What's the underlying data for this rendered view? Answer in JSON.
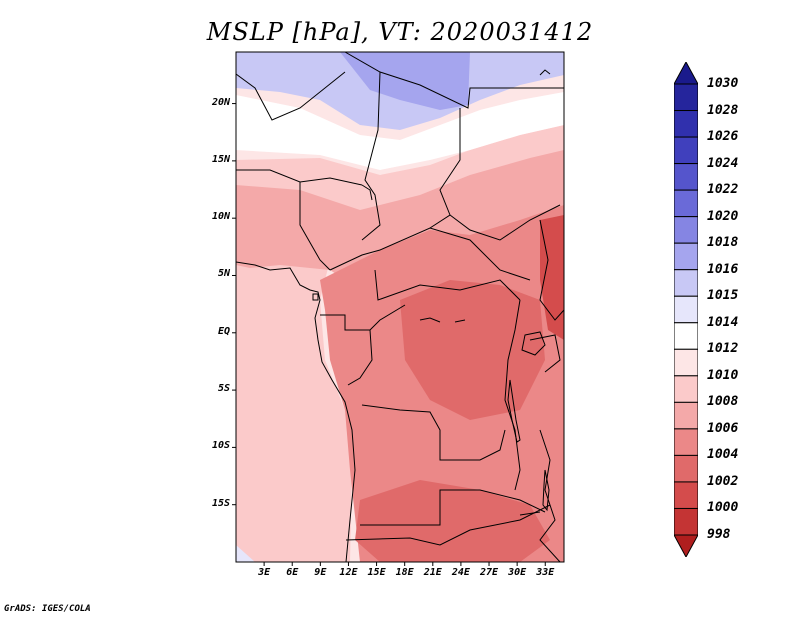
{
  "title": "MSLP [hPa], VT: 2020031412",
  "credit": "GrADS: IGES/COLA",
  "map": {
    "variable": "Mean sea level pressure",
    "units": "hPa",
    "valid_time": "2020031412",
    "lon_range": [
      0,
      35
    ],
    "lat_range": [
      -20,
      24.5
    ],
    "lat_labels": [
      {
        "value": 20,
        "text": "20N"
      },
      {
        "value": 15,
        "text": "15N"
      },
      {
        "value": 10,
        "text": "10N"
      },
      {
        "value": 5,
        "text": "5N"
      },
      {
        "value": 0,
        "text": "EQ"
      },
      {
        "value": -5,
        "text": "5S"
      },
      {
        "value": -10,
        "text": "10S"
      },
      {
        "value": -15,
        "text": "15S"
      }
    ],
    "lon_labels": [
      {
        "value": 3,
        "text": "3E"
      },
      {
        "value": 6,
        "text": "6E"
      },
      {
        "value": 9,
        "text": "9E"
      },
      {
        "value": 12,
        "text": "12E"
      },
      {
        "value": 15,
        "text": "15E"
      },
      {
        "value": 18,
        "text": "18E"
      },
      {
        "value": 21,
        "text": "21E"
      },
      {
        "value": 24,
        "text": "24E"
      },
      {
        "value": 27,
        "text": "27E"
      },
      {
        "value": 30,
        "text": "30E"
      },
      {
        "value": 33,
        "text": "33E"
      }
    ]
  },
  "legend": {
    "levels": [
      "1030",
      "1028",
      "1026",
      "1024",
      "1022",
      "1020",
      "1018",
      "1016",
      "1015",
      "1014",
      "1012",
      "1010",
      "1008",
      "1006",
      "1004",
      "1002",
      "1000",
      "998"
    ],
    "colors": [
      "#1a1a8c",
      "#25259c",
      "#3030ad",
      "#4040bd",
      "#5555cc",
      "#6a6ad8",
      "#8585e3",
      "#a5a5ee",
      "#c8c8f5",
      "#e6e6fb",
      "#ffffff",
      "#fde6e6",
      "#fbcaca",
      "#f4a9a9",
      "#eb8888",
      "#e06a6a",
      "#d44c4c",
      "#c43434",
      "#b01e1e"
    ]
  },
  "pressure_field": {
    "units": "hPa",
    "zones": [
      {
        "name": "sahara-north-high",
        "value": 1016
      },
      {
        "name": "sahara-belt",
        "value": 1015
      },
      {
        "name": "sahel-transition",
        "value": 1012
      },
      {
        "name": "atlantic-ocean",
        "value": 1012
      },
      {
        "name": "west-africa-interior",
        "value": 1010
      },
      {
        "name": "central-africa",
        "value": 1008
      },
      {
        "name": "congo-basin-low",
        "value": 1006
      },
      {
        "name": "angola-zambia-low",
        "value": 1006
      },
      {
        "name": "east-africa-low",
        "value": 1004
      }
    ]
  }
}
